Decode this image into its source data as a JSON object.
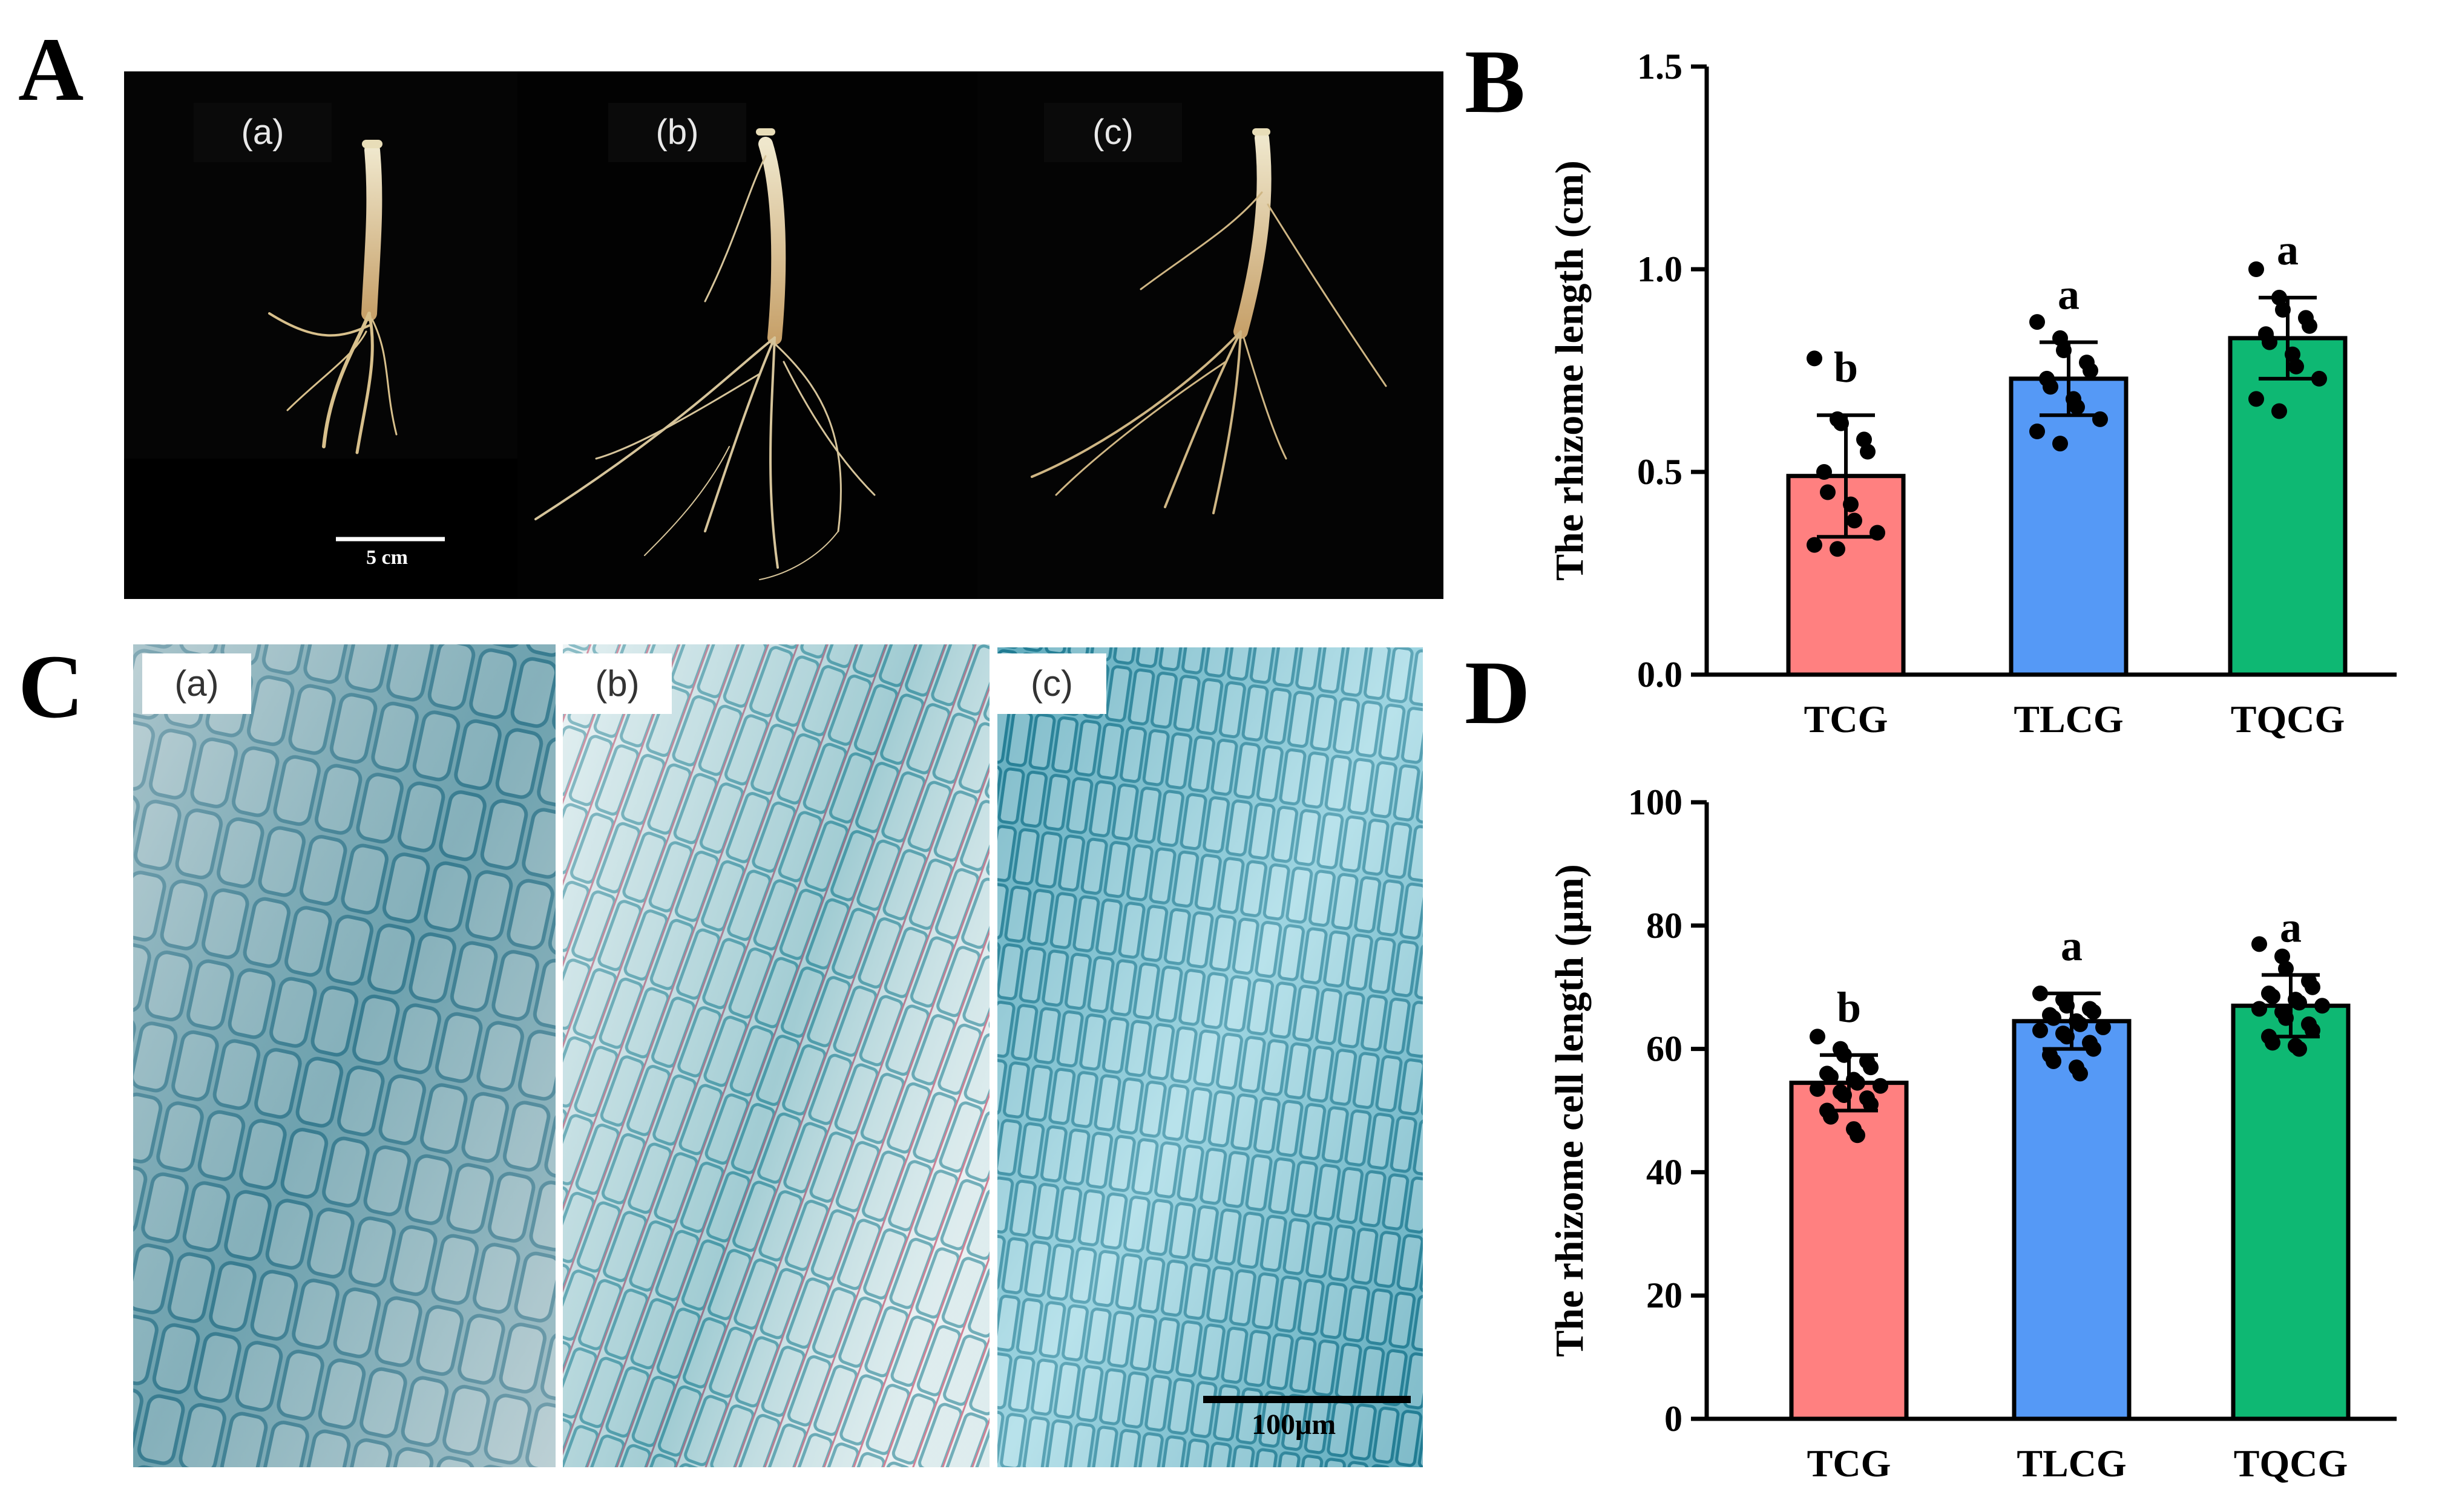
{
  "panels": {
    "A": {
      "letter": "A",
      "sublabels": [
        "(a)",
        "(b)",
        "(c)"
      ],
      "scale_bar": "5 cm"
    },
    "B": {
      "letter": "B"
    },
    "C": {
      "letter": "C",
      "sublabels": [
        "(a)",
        "(b)",
        "(c)"
      ],
      "scale_bar": "100μm"
    },
    "D": {
      "letter": "D"
    }
  },
  "chart_data": [
    {
      "type": "bar",
      "panel": "B",
      "categories": [
        "TCG",
        "TLCG",
        "TQCG"
      ],
      "values": [
        0.49,
        0.73,
        0.83
      ],
      "errors": [
        0.15,
        0.09,
        0.1
      ],
      "significance": [
        "b",
        "a",
        "a"
      ],
      "colors": [
        "#FF8080",
        "#5599F6",
        "#0EB873"
      ],
      "title": "",
      "xlabel": "",
      "ylabel": "The rhizome length (cm)",
      "ylim": [
        0,
        1.5
      ],
      "yticks": [
        "0.0",
        "0.5",
        "1.0",
        "1.5"
      ],
      "points": [
        [
          0.78,
          0.63,
          0.62,
          0.58,
          0.55,
          0.5,
          0.45,
          0.42,
          0.38,
          0.35,
          0.32,
          0.31
        ],
        [
          0.87,
          0.83,
          0.8,
          0.77,
          0.75,
          0.73,
          0.71,
          0.68,
          0.66,
          0.63,
          0.6,
          0.57
        ],
        [
          1.0,
          0.93,
          0.9,
          0.88,
          0.86,
          0.84,
          0.82,
          0.79,
          0.76,
          0.73,
          0.68,
          0.65
        ]
      ]
    },
    {
      "type": "bar",
      "panel": "D",
      "categories": [
        "TCG",
        "TLCG",
        "TQCG"
      ],
      "values": [
        54.5,
        64.5,
        67
      ],
      "errors": [
        4.5,
        4.5,
        5
      ],
      "significance": [
        "b",
        "a",
        "a"
      ],
      "colors": [
        "#FF8080",
        "#5599F6",
        "#0EB873"
      ],
      "title": "",
      "xlabel": "",
      "ylabel": "The rhizome cell length (μm)",
      "ylim": [
        0,
        100
      ],
      "yticks": [
        "0",
        "20",
        "40",
        "60",
        "80",
        "100"
      ],
      "points": [
        [
          62,
          60,
          59,
          58,
          57,
          56,
          55.5,
          55,
          54.5,
          54,
          53.5,
          53,
          52.5,
          52,
          51,
          50,
          49,
          47,
          46
        ],
        [
          69,
          68,
          67,
          66.5,
          66,
          65.5,
          65,
          64.5,
          64,
          63.5,
          63,
          62.5,
          62,
          61,
          60,
          59,
          58,
          57,
          56
        ],
        [
          77,
          75,
          73,
          71,
          70,
          69,
          68.5,
          68,
          67.5,
          67,
          66.5,
          66,
          65,
          64,
          63,
          62,
          61,
          60.5,
          60
        ]
      ]
    }
  ]
}
